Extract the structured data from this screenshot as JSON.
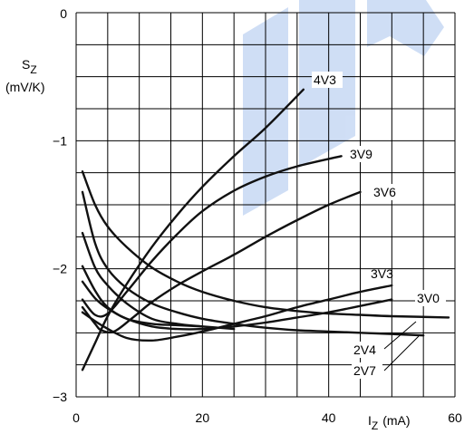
{
  "chart_data": {
    "type": "line",
    "xlabel": {
      "main": "I",
      "sub": "Z",
      "unit": "(mA)"
    },
    "ylabel": {
      "main": "S",
      "sub": "Z",
      "unit": "(mV/K)"
    },
    "xlim": [
      0,
      60
    ],
    "ylim": [
      -3,
      0
    ],
    "x_ticks": [
      {
        "value": 0,
        "label": "0"
      },
      {
        "value": 20,
        "label": "20"
      },
      {
        "value": 40,
        "label": "40"
      },
      {
        "value": 60,
        "label": "60"
      }
    ],
    "y_ticks": [
      {
        "value": 0,
        "label": "0"
      },
      {
        "value": -1,
        "label": "−1"
      },
      {
        "value": -2,
        "label": "−2"
      },
      {
        "value": -3,
        "label": "−3"
      }
    ],
    "grid": true,
    "watermark_color": "#2b6fd6",
    "series": [
      {
        "name": "4V3",
        "x": [
          1,
          3,
          5,
          8,
          12,
          16,
          20,
          25,
          30,
          36
        ],
        "y": [
          -2.79,
          -2.58,
          -2.37,
          -2.12,
          -1.83,
          -1.58,
          -1.36,
          -1.12,
          -0.9,
          -0.6
        ]
      },
      {
        "name": "3V9",
        "x": [
          1,
          3,
          5,
          8,
          12,
          16,
          20,
          25,
          30,
          35,
          42
        ],
        "y": [
          -2.24,
          -2.36,
          -2.35,
          -2.18,
          -1.94,
          -1.73,
          -1.55,
          -1.39,
          -1.28,
          -1.2,
          -1.12
        ]
      },
      {
        "name": "3V6",
        "x": [
          1,
          3,
          4,
          6,
          9,
          12,
          16,
          20,
          25,
          30,
          35,
          40,
          45
        ],
        "y": [
          -2.3,
          -2.43,
          -2.48,
          -2.49,
          -2.38,
          -2.26,
          -2.13,
          -2.02,
          -1.89,
          -1.75,
          -1.62,
          -1.5,
          -1.4
        ]
      },
      {
        "name": "3V3",
        "x": [
          1,
          4,
          8,
          12,
          16,
          20,
          25,
          30,
          35,
          40,
          45,
          50
        ],
        "y": [
          -2.34,
          -2.44,
          -2.54,
          -2.56,
          -2.53,
          -2.49,
          -2.43,
          -2.37,
          -2.3,
          -2.24,
          -2.18,
          -2.13
        ]
      },
      {
        "name": "3V0",
        "x": [
          1,
          3,
          5,
          8,
          12,
          16,
          20,
          25,
          30,
          35,
          40,
          45,
          50
        ],
        "y": [
          -2.1,
          -2.23,
          -2.31,
          -2.39,
          -2.45,
          -2.47,
          -2.47,
          -2.45,
          -2.42,
          -2.38,
          -2.34,
          -2.29,
          -2.24
        ]
      },
      {
        "name": "2V4",
        "x": [
          1,
          3,
          5,
          8,
          12,
          16,
          20,
          25,
          30,
          35,
          40,
          45,
          50,
          59
        ],
        "y": [
          -1.24,
          -1.5,
          -1.67,
          -1.83,
          -1.99,
          -2.1,
          -2.18,
          -2.25,
          -2.3,
          -2.33,
          -2.35,
          -2.36,
          -2.37,
          -2.38
        ]
      },
      {
        "name": "2V7",
        "x": [
          1,
          3,
          5,
          8,
          12,
          16,
          20,
          25,
          30,
          35,
          40,
          45,
          50,
          55
        ],
        "y": [
          -1.4,
          -1.8,
          -2.0,
          -2.15,
          -2.27,
          -2.34,
          -2.39,
          -2.43,
          -2.46,
          -2.48,
          -2.49,
          -2.5,
          -2.51,
          -2.52
        ]
      },
      {
        "name": "",
        "x": [
          1,
          3,
          5,
          8,
          12,
          16,
          20,
          25
        ],
        "y": [
          -1.72,
          -1.99,
          -2.13,
          -2.27,
          -2.39,
          -2.43,
          -2.45,
          -2.47
        ]
      },
      {
        "name": "",
        "x": [
          1,
          3,
          5,
          8,
          12,
          16,
          20
        ],
        "y": [
          -1.98,
          -2.17,
          -2.3,
          -2.39,
          -2.43,
          -2.44,
          -2.45
        ]
      }
    ]
  }
}
